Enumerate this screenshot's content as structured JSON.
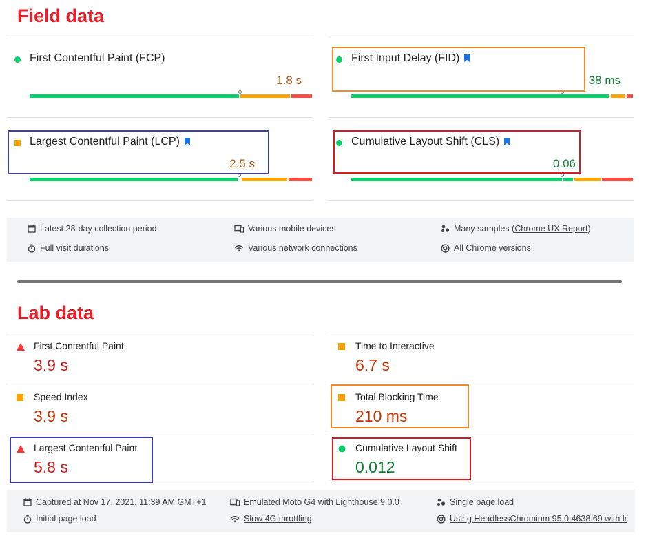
{
  "field": {
    "title": "Field data",
    "metrics": [
      {
        "label": "First Contentful Paint (FCP)",
        "value": "1.8 s",
        "status": "good",
        "bookmark": false
      },
      {
        "label": "First Input Delay (FID)",
        "value": "38 ms",
        "status": "good",
        "bookmark": true
      },
      {
        "label": "Largest Contentful Paint (LCP)",
        "value": "2.5 s",
        "status": "average",
        "bookmark": true
      },
      {
        "label": "Cumulative Layout Shift (CLS)",
        "value": "0.06",
        "status": "good",
        "bookmark": true
      }
    ],
    "info": {
      "period": "Latest 28-day collection period",
      "devices": "Various mobile devices",
      "samples_prefix": "Many samples (",
      "samples_link": "Chrome UX Report",
      "samples_suffix": ")",
      "durations": "Full visit durations",
      "network": "Various network connections",
      "versions": "All Chrome versions"
    }
  },
  "lab": {
    "title": "Lab data",
    "metrics": [
      {
        "label": "First Contentful Paint",
        "value": "3.9 s",
        "status": "fail"
      },
      {
        "label": "Time to Interactive",
        "value": "6.7 s",
        "status": "average"
      },
      {
        "label": "Speed Index",
        "value": "3.9 s",
        "status": "average"
      },
      {
        "label": "Total Blocking Time",
        "value": "210 ms",
        "status": "average"
      },
      {
        "label": "Largest Contentful Paint",
        "value": "5.8 s",
        "status": "fail"
      },
      {
        "label": "Cumulative Layout Shift",
        "value": "0.012",
        "status": "pass"
      }
    ],
    "info": {
      "captured": "Captured at Nov 17, 2021, 11:39 AM GMT+1",
      "device": "Emulated Moto G4 with Lighthouse 9.0.0",
      "single": "Single page load",
      "initial": "Initial page load",
      "throttling": "Slow 4G throttling",
      "browser": "Using HeadlessChromium 95.0.4638.69 with lr"
    }
  },
  "colors": {
    "good": "#0cce6b",
    "average": "#ffa400",
    "poor": "#ff4e42",
    "heading": "#e8202a",
    "bookmark": "#1a73e8",
    "highlight_orange": "#f08a2a",
    "highlight_blue": "#3a3fb0",
    "highlight_red": "#d9191f"
  }
}
